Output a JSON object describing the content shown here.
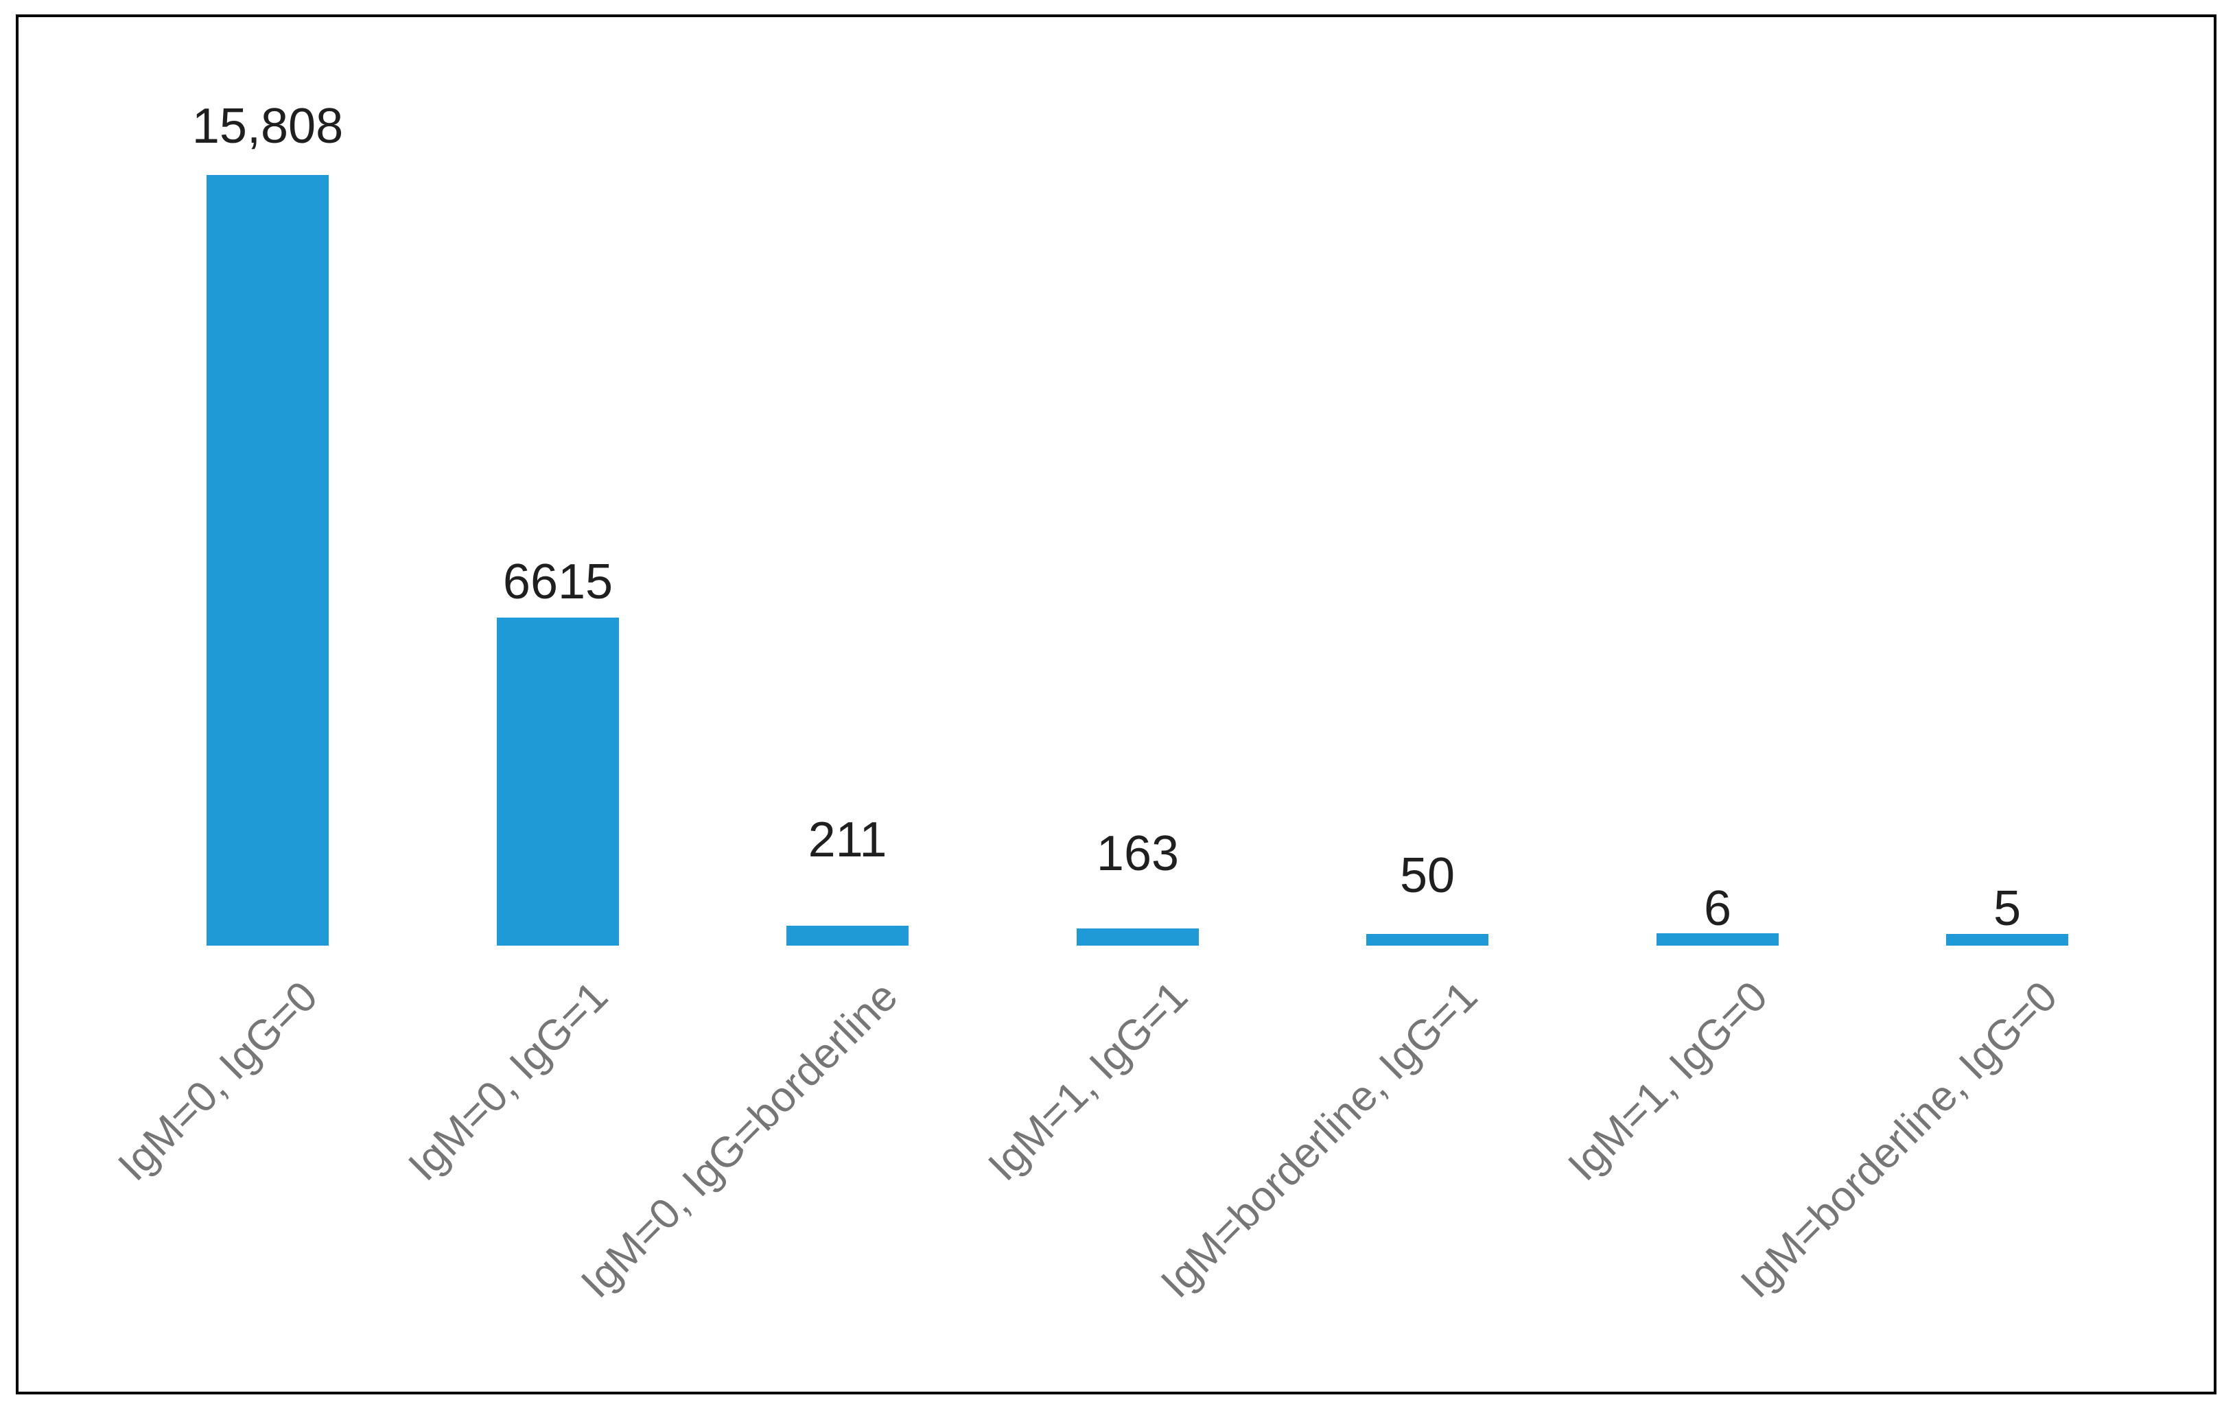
{
  "chart_data": {
    "type": "bar",
    "categories": [
      "IgM=0, IgG=0",
      "IgM=0, IgG=1",
      "IgM=0, IgG=borderline",
      "IgM=1, IgG=1",
      "IgM=borderline, IgG=1",
      "IgM=1, IgG=0",
      "IgM=borderline, IgG=0"
    ],
    "values": [
      15808,
      6615,
      211,
      163,
      50,
      6,
      5
    ],
    "value_labels": [
      "15,808",
      "6615",
      "211",
      "163",
      "50",
      "6",
      "5"
    ],
    "title": "",
    "xlabel": "",
    "ylabel": "",
    "ylim": [
      0,
      16000
    ],
    "grid": false,
    "legend": false,
    "axis_lines": false,
    "bar_color": "#1f9ad7",
    "value_label_color": "#1f1f1f",
    "category_label_color": "#767676",
    "frame_border_color": "#000000",
    "category_label_rotation_deg": 45
  }
}
